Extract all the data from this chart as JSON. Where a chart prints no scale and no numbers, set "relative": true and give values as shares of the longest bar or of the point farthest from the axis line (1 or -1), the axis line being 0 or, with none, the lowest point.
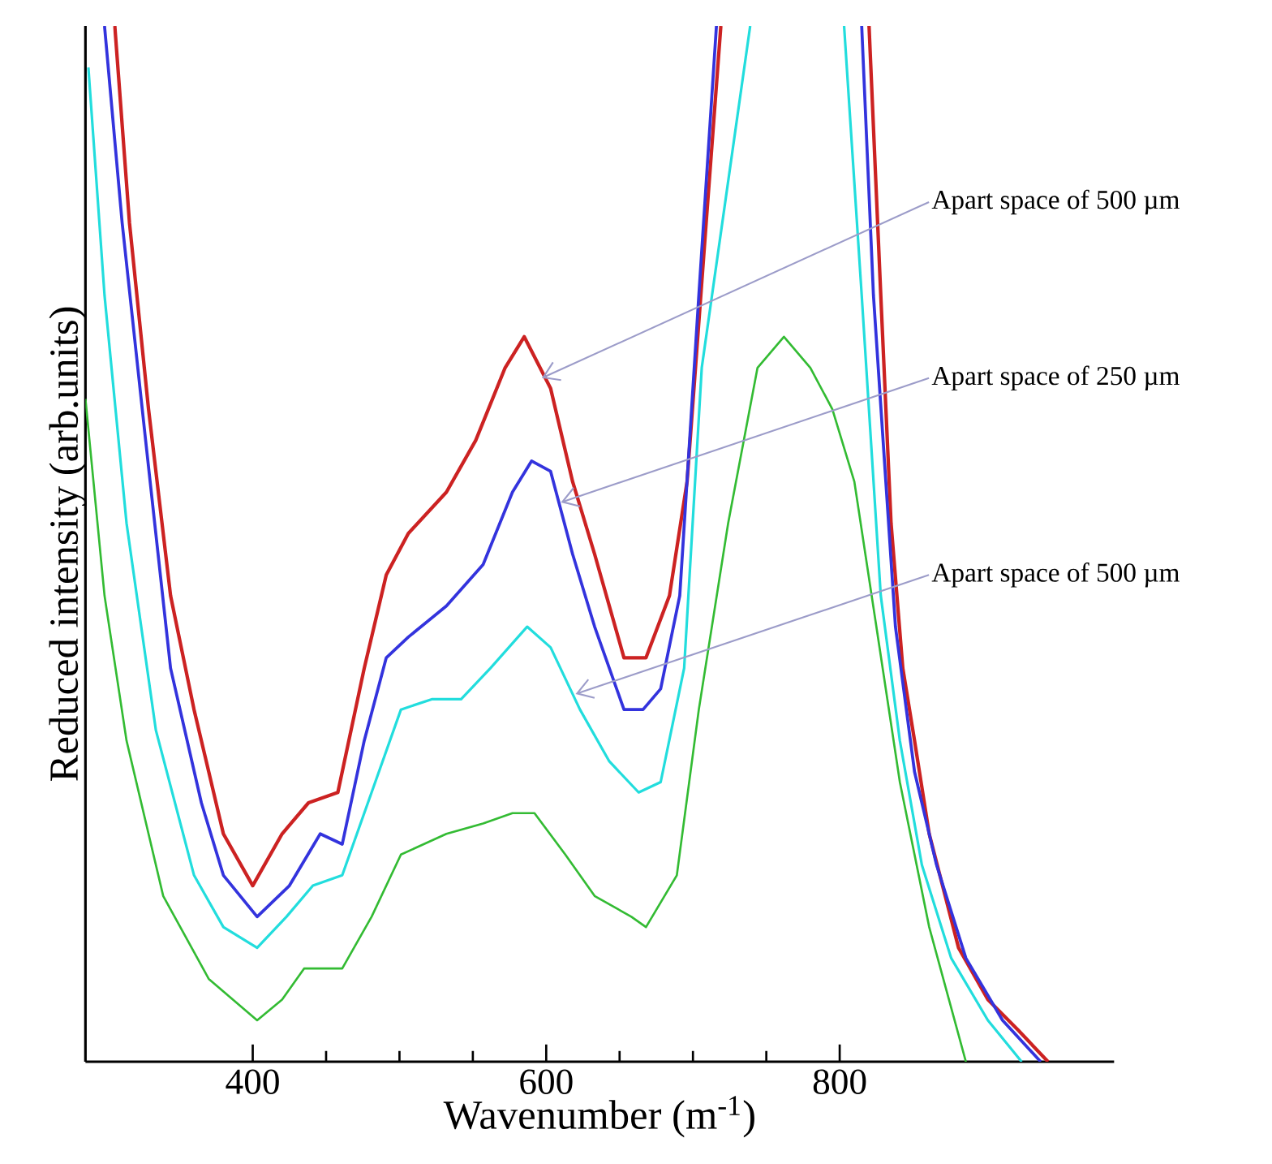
{
  "chart_data": {
    "type": "line",
    "relative": true,
    "xlabel": "Wavenumber  (m$^{-1}$)",
    "ylabel": "Reduced intensity (arb.units)",
    "xlim": [
      286,
      987
    ],
    "xticks": [
      400,
      600,
      800
    ],
    "grid": false,
    "marker": "none",
    "line_style": "solid",
    "series": [
      {
        "color": "#cc2222",
        "x": [
          306,
          316,
          329,
          344,
          360,
          380,
          400,
          420,
          438,
          458,
          476,
          491,
          506,
          532,
          552,
          572,
          585,
          603,
          618,
          633,
          653,
          668,
          684,
          696,
          709,
          719,
          770,
          820,
          828,
          835,
          843,
          851,
          861,
          881,
          901,
          922,
          942
        ],
        "values": [
          1.0,
          0.81,
          0.63,
          0.45,
          0.34,
          0.22,
          0.17,
          0.22,
          0.25,
          0.26,
          0.38,
          0.47,
          0.51,
          0.55,
          0.6,
          0.67,
          0.7,
          0.65,
          0.56,
          0.49,
          0.39,
          0.39,
          0.45,
          0.56,
          0.81,
          1.0,
          null,
          1.0,
          0.74,
          0.52,
          0.38,
          0.31,
          0.22,
          0.11,
          0.06,
          0.03,
          0.0
        ]
      },
      {
        "color": "#3333dd",
        "x": [
          299,
          311,
          327,
          344,
          365,
          380,
          403,
          425,
          446,
          461,
          476,
          491,
          506,
          532,
          557,
          577,
          590,
          603,
          618,
          633,
          653,
          666,
          678,
          691,
          704,
          716,
          770,
          815,
          823,
          838,
          851,
          866,
          886,
          911,
          937
        ],
        "values": [
          1.0,
          0.81,
          0.6,
          0.38,
          0.25,
          0.18,
          0.14,
          0.17,
          0.22,
          0.21,
          0.31,
          0.39,
          0.41,
          0.44,
          0.48,
          0.55,
          0.58,
          0.57,
          0.49,
          0.42,
          0.34,
          0.34,
          0.36,
          0.45,
          0.74,
          1.0,
          null,
          1.0,
          0.74,
          0.42,
          0.28,
          0.19,
          0.1,
          0.04,
          0.0
        ]
      },
      {
        "color": "#22dddd",
        "x": [
          288,
          299,
          314,
          334,
          360,
          380,
          403,
          423,
          441,
          461,
          481,
          501,
          522,
          542,
          562,
          587,
          603,
          623,
          643,
          663,
          678,
          694,
          706,
          739,
          780,
          803,
          815,
          828,
          841,
          856,
          876,
          901,
          924
        ],
        "values": [
          0.96,
          0.74,
          0.52,
          0.32,
          0.18,
          0.13,
          0.11,
          0.14,
          0.17,
          0.18,
          0.26,
          0.34,
          0.35,
          0.35,
          0.38,
          0.42,
          0.4,
          0.34,
          0.29,
          0.26,
          0.27,
          0.38,
          0.67,
          1.0,
          null,
          1.0,
          0.74,
          0.45,
          0.31,
          0.19,
          0.1,
          0.04,
          0.0
        ]
      },
      {
        "color": "#33bb33",
        "x": [
          286,
          299,
          314,
          339,
          370,
          403,
          420,
          435,
          461,
          481,
          501,
          532,
          557,
          577,
          592,
          613,
          633,
          658,
          668,
          689,
          704,
          724,
          744,
          762,
          780,
          795,
          810,
          825,
          841,
          861,
          886
        ],
        "values": [
          0.64,
          0.45,
          0.31,
          0.16,
          0.08,
          0.04,
          0.06,
          0.09,
          0.09,
          0.14,
          0.2,
          0.22,
          0.23,
          0.24,
          0.24,
          0.2,
          0.16,
          0.14,
          0.13,
          0.18,
          0.34,
          0.52,
          0.67,
          0.7,
          0.67,
          0.63,
          0.56,
          0.42,
          0.27,
          0.13,
          0.0
        ]
      }
    ],
    "annotations": [
      {
        "text": "Apart space of 500 µm",
        "x": 597,
        "y": 0.66
      },
      {
        "text": "Apart space of 250 µm",
        "x": 610,
        "y": 0.54
      },
      {
        "text": "Apart space of 500 µm",
        "x": 620,
        "y": 0.355
      }
    ]
  }
}
